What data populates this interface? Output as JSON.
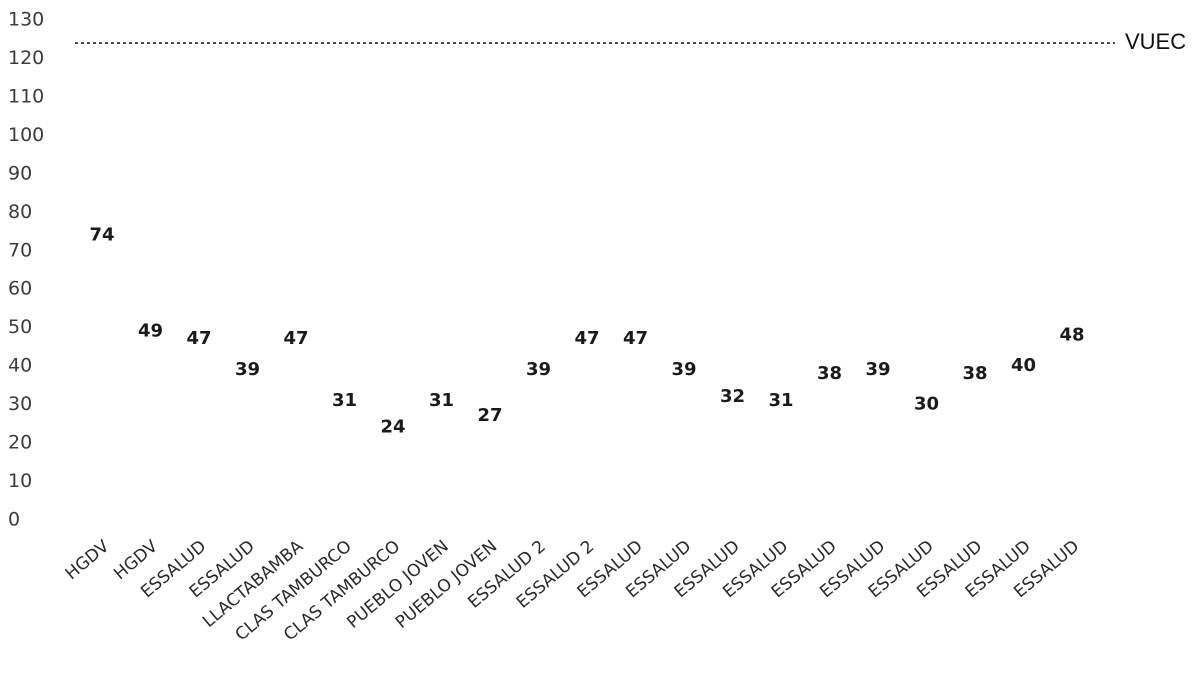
{
  "chart_data": {
    "type": "scatter",
    "title": "",
    "xlabel": "",
    "ylabel": "",
    "ylim": [
      0,
      130
    ],
    "yticks": [
      0,
      10,
      20,
      30,
      40,
      50,
      60,
      70,
      80,
      90,
      100,
      110,
      120,
      130
    ],
    "categories": [
      "HGDV",
      "HGDV",
      "ESSALUD",
      "ESSALUD",
      "LLACTABAMBA",
      "CLAS TAMBURCO",
      "CLAS TAMBURCO",
      "PUEBLO JOVEN",
      "PUEBLO JOVEN",
      "ESSALUD 2",
      "ESSALUD 2",
      "ESSALUD",
      "ESSALUD",
      "ESSALUD",
      "ESSALUD",
      "ESSALUD",
      "ESSALUD",
      "ESSALUD",
      "ESSALUD",
      "ESSALUD",
      "ESSALUD"
    ],
    "series": [
      {
        "values": [
          74,
          49,
          47,
          39,
          47,
          31,
          24,
          31,
          27,
          39,
          47,
          47,
          39,
          32,
          31,
          38,
          39,
          30,
          38,
          40,
          48
        ]
      }
    ],
    "reference_line": {
      "label": "VUEC",
      "value": 124,
      "style": "dashed"
    },
    "grid": false,
    "legend": "none"
  }
}
